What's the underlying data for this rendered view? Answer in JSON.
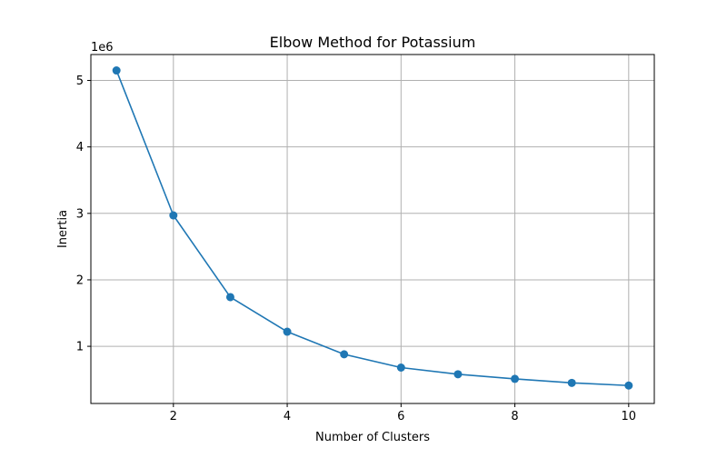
{
  "chart_data": {
    "type": "line",
    "title": "Elbow Method for Potassium",
    "xlabel": "Number of Clusters",
    "ylabel": "Inertia",
    "y_offset_label": "1e6",
    "x": [
      1,
      2,
      3,
      4,
      5,
      6,
      7,
      8,
      9,
      10
    ],
    "series": [
      {
        "values": [
          5.15,
          2.97,
          1.74,
          1.22,
          0.88,
          0.68,
          0.58,
          0.51,
          0.45,
          0.41
        ],
        "color": "#1f77b4",
        "marker": "circle"
      }
    ],
    "xlim": [
      0.55,
      10.45
    ],
    "ylim": [
      0.14,
      5.39
    ],
    "x_ticks": [
      2,
      4,
      6,
      8,
      10
    ],
    "x_tick_labels": [
      "2",
      "4",
      "6",
      "8",
      "10"
    ],
    "y_ticks": [
      1,
      2,
      3,
      4,
      5
    ],
    "y_tick_labels": [
      "1",
      "2",
      "3",
      "4",
      "5"
    ],
    "grid": true,
    "legend": "none"
  }
}
